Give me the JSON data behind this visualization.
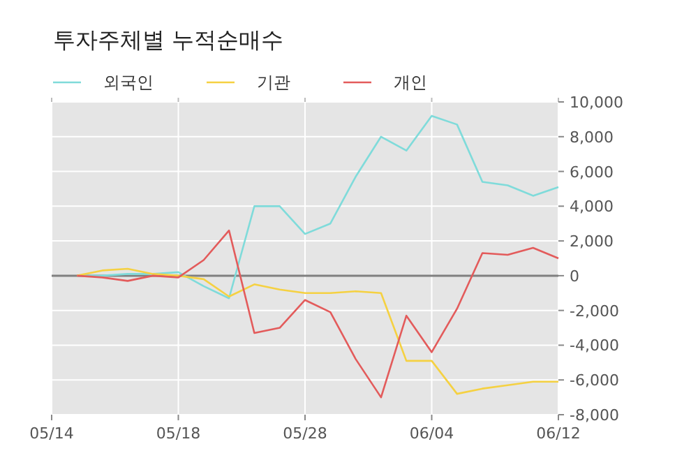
{
  "chart_data": {
    "type": "line",
    "title": "투자주체별 누적순매수",
    "categories": [
      "05/14",
      null,
      null,
      null,
      null,
      "05/18",
      null,
      null,
      null,
      null,
      "05/28",
      null,
      null,
      null,
      null,
      "06/04",
      null,
      null,
      null,
      null,
      "06/12"
    ],
    "series": [
      {
        "name": "외국인",
        "color": "#7fdbda",
        "values": [
          null,
          0,
          0,
          100,
          100,
          200,
          -600,
          -1300,
          4000,
          4000,
          2400,
          3000,
          5700,
          8000,
          7200,
          9200,
          8700,
          5400,
          5200,
          4600,
          5100
        ]
      },
      {
        "name": "기관",
        "color": "#f5d142",
        "values": [
          null,
          0,
          300,
          400,
          100,
          0,
          -200,
          -1200,
          -500,
          -800,
          -1000,
          -1000,
          -900,
          -1000,
          -4900,
          -4900,
          -6800,
          -6500,
          -6300,
          -6100,
          -6100
        ]
      },
      {
        "name": "개인",
        "color": "#e35b5b",
        "values": [
          null,
          0,
          -100,
          -300,
          0,
          -100,
          900,
          2600,
          -3300,
          -3000,
          -1400,
          -2100,
          -4800,
          -7000,
          -2300,
          -4400,
          -1900,
          1300,
          1200,
          1600,
          1000
        ]
      }
    ],
    "ylim": [
      -8000,
      10000
    ],
    "yticks": [
      {
        "value": -8000,
        "label": "-8,000"
      },
      {
        "value": -6000,
        "label": "-6,000"
      },
      {
        "value": -4000,
        "label": "-4,000"
      },
      {
        "value": -2000,
        "label": "-2,000"
      },
      0,
      {
        "value": 2000,
        "label": "2,000"
      },
      {
        "value": 4000,
        "label": "4,000"
      },
      {
        "value": 6000,
        "label": "6,000"
      },
      {
        "value": 8000,
        "label": "8,000"
      },
      {
        "value": 10000,
        "label": "10,000"
      }
    ],
    "ref_lines": [
      {
        "axis": "y",
        "value": 0,
        "color": "#808080"
      }
    ],
    "grid": true,
    "legend": "top left",
    "marker": "none",
    "line_style": "solid"
  }
}
